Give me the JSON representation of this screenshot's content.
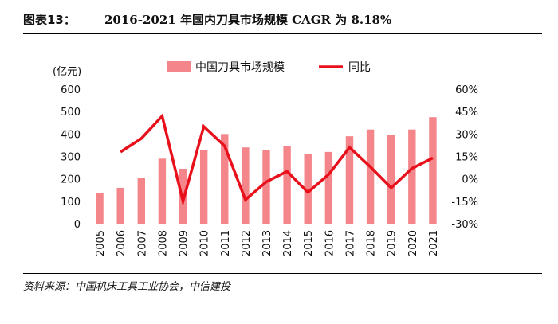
{
  "header": {
    "figure_label": "图表13：",
    "title": "2016-2021 年国内刀具市场规模 CAGR 为 8.18%"
  },
  "footer": {
    "source": "资料来源：中国机床工具工业协会，中信建投"
  },
  "colors": {
    "bar": "#f4858a",
    "line": "#e8111b"
  },
  "chart_data": {
    "type": "bar",
    "y_unit_label": "(亿元)",
    "categories": [
      "2005",
      "2006",
      "2007",
      "2008",
      "2009",
      "2010",
      "2011",
      "2012",
      "2013",
      "2014",
      "2015",
      "2016",
      "2017",
      "2018",
      "2019",
      "2020",
      "2021"
    ],
    "series": [
      {
        "name": "中国刀具市场规模",
        "type": "bar",
        "axis": "left",
        "values": [
          135,
          160,
          205,
          290,
          245,
          330,
          400,
          340,
          330,
          345,
          310,
          320,
          390,
          420,
          395,
          420,
          475
        ]
      },
      {
        "name": "同比",
        "type": "line",
        "axis": "right",
        "values": [
          null,
          18,
          27,
          42,
          -15,
          35,
          22,
          -14,
          -2,
          5,
          -9,
          3,
          21,
          8,
          -6,
          7,
          14
        ]
      }
    ],
    "left_axis": {
      "ylim": [
        0,
        600
      ],
      "ticks": [
        "0",
        "100",
        "200",
        "300",
        "400",
        "500",
        "600"
      ]
    },
    "right_axis": {
      "ylim": [
        -30,
        60
      ],
      "ticks": [
        "-30%",
        "-15%",
        "0%",
        "15%",
        "30%",
        "45%",
        "60%"
      ]
    },
    "grid": false,
    "legend_position": "top"
  }
}
